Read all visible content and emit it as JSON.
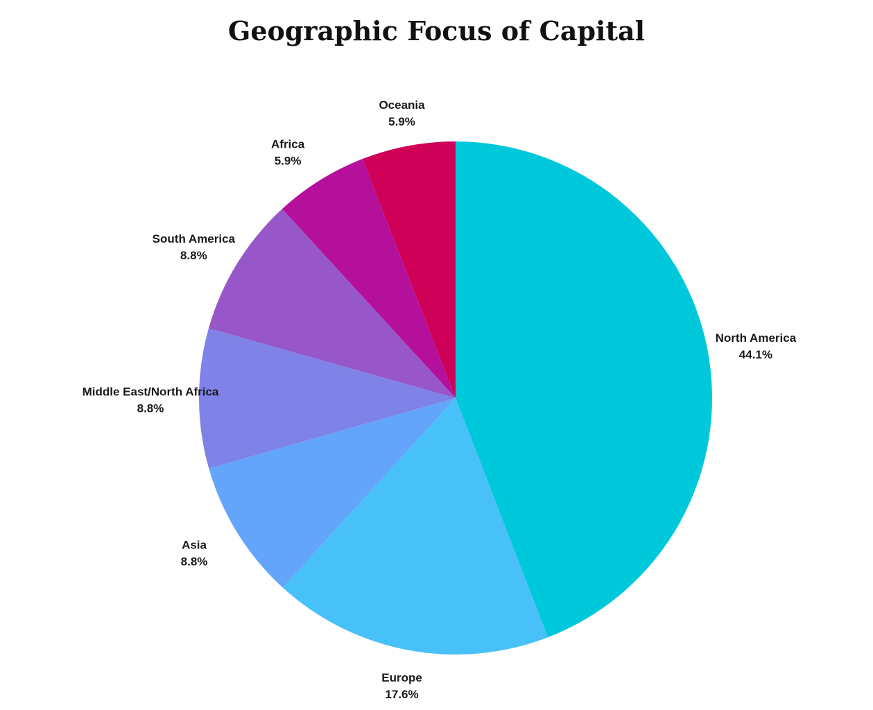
{
  "chart_data": {
    "type": "pie",
    "title": "Geographic Focus of Capital",
    "start_angle_deg": 0,
    "direction": "clockwise",
    "slices": [
      {
        "label": "North America",
        "value": 44.1,
        "value_label": "44.1%",
        "color": "#00C8DB"
      },
      {
        "label": "Europe",
        "value": 17.6,
        "value_label": "17.6%",
        "color": "#48C0F8"
      },
      {
        "label": "Asia",
        "value": 8.8,
        "value_label": "8.8%",
        "color": "#63A5FA"
      },
      {
        "label": "Middle East/North Africa",
        "value": 8.8,
        "value_label": "8.8%",
        "color": "#7F82E6"
      },
      {
        "label": "South America",
        "value": 8.8,
        "value_label": "8.8%",
        "color": "#9757C9"
      },
      {
        "label": "Africa",
        "value": 5.9,
        "value_label": "5.9%",
        "color": "#B5109C"
      },
      {
        "label": "Oceania",
        "value": 5.9,
        "value_label": "5.9%",
        "color": "#CE0058"
      }
    ]
  }
}
